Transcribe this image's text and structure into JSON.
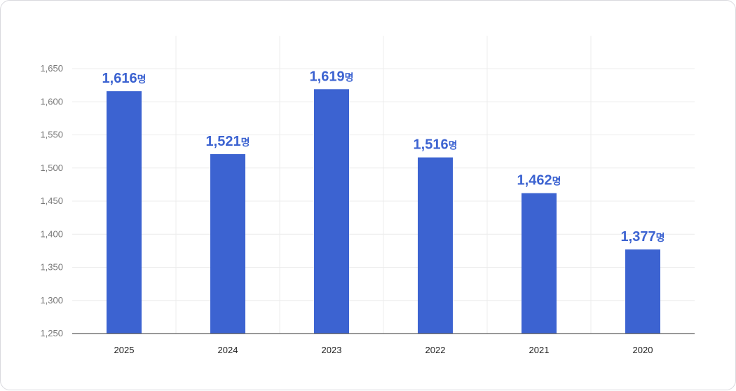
{
  "chart_data": {
    "type": "bar",
    "categories": [
      "2025",
      "2024",
      "2023",
      "2022",
      "2021",
      "2020"
    ],
    "values": [
      1616,
      1521,
      1619,
      1516,
      1462,
      1377
    ],
    "data_labels": [
      "1,616",
      "1,521",
      "1,619",
      "1,516",
      "1,462",
      "1,377"
    ],
    "unit_suffix": "명",
    "yticks": [
      "1,250",
      "1,300",
      "1,350",
      "1,400",
      "1,450",
      "1,500",
      "1,550",
      "1,600",
      "1,650"
    ],
    "ylim": [
      1250,
      1650
    ],
    "grid": true,
    "bar_color": "#3c63d1"
  }
}
